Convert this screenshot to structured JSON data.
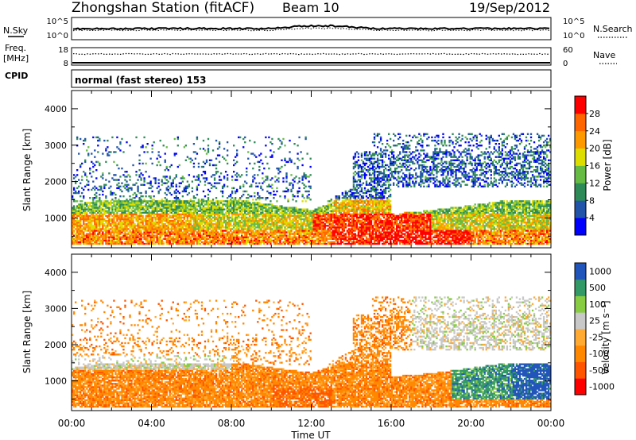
{
  "header": {
    "station": "Zhongshan Station (fitACF)",
    "beam": "Beam 10",
    "date": "19/Sep/2012"
  },
  "sky_panel": {
    "left_label": "N.Sky",
    "left_ticks": [
      "10^5",
      "10^0"
    ],
    "right_ticks": [
      "10^5",
      "10^0"
    ],
    "right_label": "N.Search"
  },
  "freq_panel": {
    "left_label_1": "Freq.",
    "left_label_2": "[MHz]",
    "left_ticks": [
      "18",
      "8"
    ],
    "right_ticks": [
      "60",
      "0"
    ],
    "right_label": "Nave"
  },
  "cpid_panel": {
    "label": "CPID",
    "mode": "normal (fast stereo) 153"
  },
  "colors": {
    "power": [
      "#0000ff",
      "#2255aa",
      "#2e8b57",
      "#66bb44",
      "#dddd00",
      "#ff9900",
      "#ff6600",
      "#ff0000"
    ],
    "velocity": [
      "#ff0000",
      "#ff5500",
      "#ff8800",
      "#ffaa33",
      "#c8c8c8",
      "#88cc44",
      "#339966",
      "#2255bb"
    ]
  },
  "chart_data": [
    {
      "type": "heatmap",
      "panel": "power",
      "ylabel": "Slant Range [km]",
      "ylim": [
        180,
        4500
      ],
      "yticks": [
        "1000",
        "2000",
        "3000",
        "4000"
      ],
      "xticks": [
        "00:00",
        "04:00",
        "08:00",
        "12:00",
        "16:00",
        "20:00",
        "00:00"
      ],
      "colorbar_label": "Power [dB]",
      "colorbar_ticks": [
        "4",
        "8",
        "12",
        "16",
        "20",
        "24",
        "28"
      ],
      "colorbar_range": [
        0,
        32
      ]
    },
    {
      "type": "heatmap",
      "panel": "velocity",
      "ylabel": "Slant Range [km]",
      "ylim": [
        180,
        4500
      ],
      "yticks": [
        "1000",
        "2000",
        "3000",
        "4000"
      ],
      "xticks": [
        "00:00",
        "04:00",
        "08:00",
        "12:00",
        "16:00",
        "20:00",
        "00:00"
      ],
      "xlabel": "Time UT",
      "colorbar_label": "Velocity [m s⁻¹]",
      "colorbar_ticks": [
        "1000",
        "500",
        "100",
        "25",
        "-25",
        "-100",
        "-500",
        "-1000"
      ]
    }
  ]
}
